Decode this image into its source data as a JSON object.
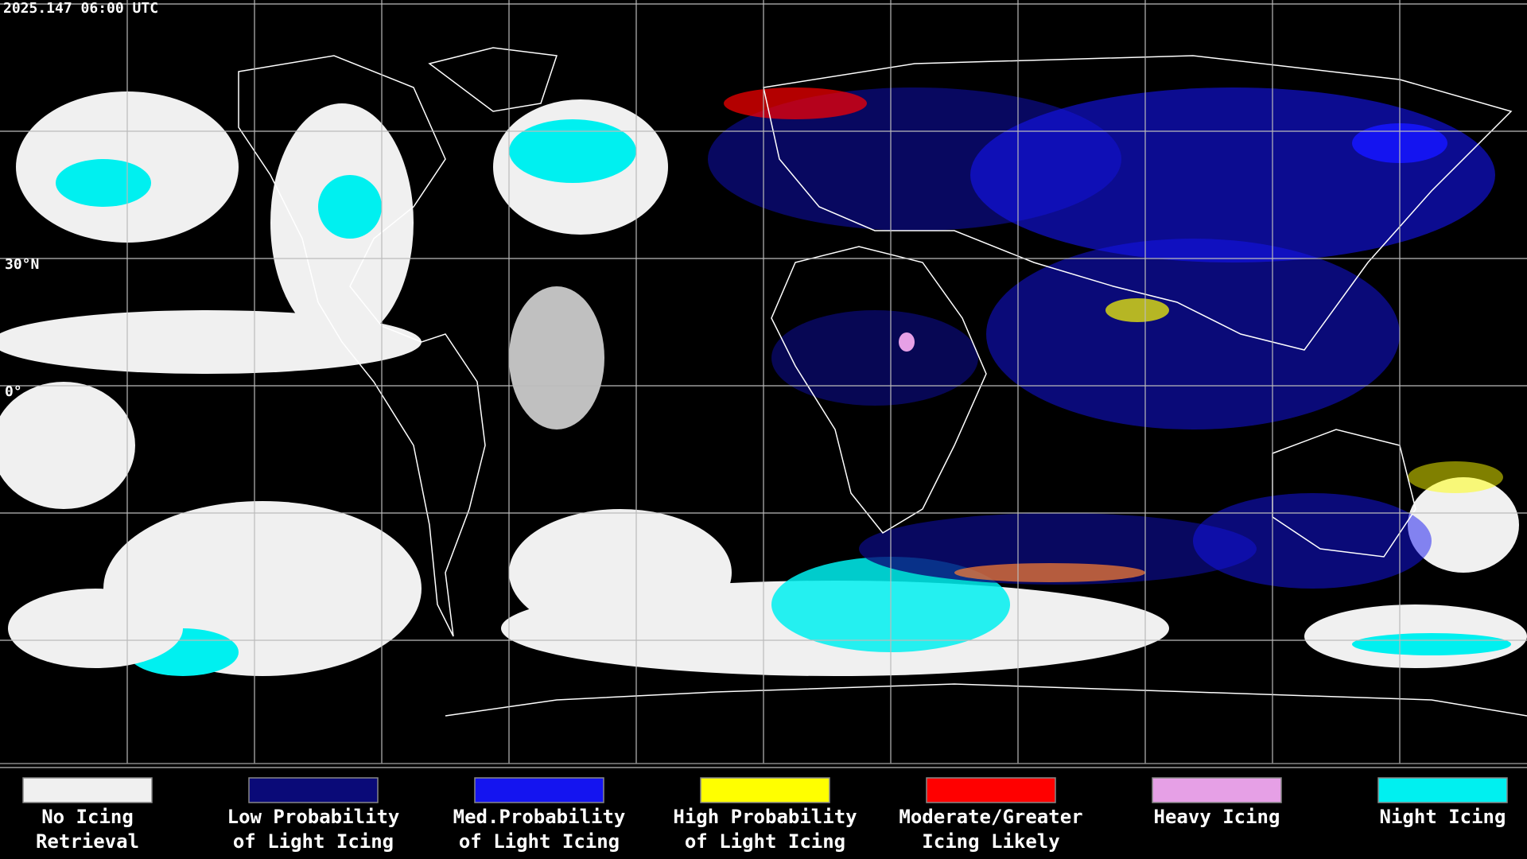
{
  "timestamp": "2025.147 06:00 UTC",
  "lat_labels": [
    "30°N",
    "0°"
  ],
  "legend": [
    {
      "lines": [
        "No Icing",
        "Retrieval"
      ],
      "color": "#f0f0f0"
    },
    {
      "lines": [
        "Low Probability",
        "of Light Icing"
      ],
      "color": "#0a0a78"
    },
    {
      "lines": [
        "Med.Probability",
        "of Light Icing"
      ],
      "color": "#1414f0"
    },
    {
      "lines": [
        "High Probability",
        "of Light Icing"
      ],
      "color": "#ffff00"
    },
    {
      "lines": [
        "Moderate/Greater",
        "Icing Likely"
      ],
      "color": "#ff0000"
    },
    {
      "lines": [
        "Heavy Icing"
      ],
      "color": "#e6a0e6"
    },
    {
      "lines": [
        "Night Icing"
      ],
      "color": "#00f0f0"
    }
  ]
}
